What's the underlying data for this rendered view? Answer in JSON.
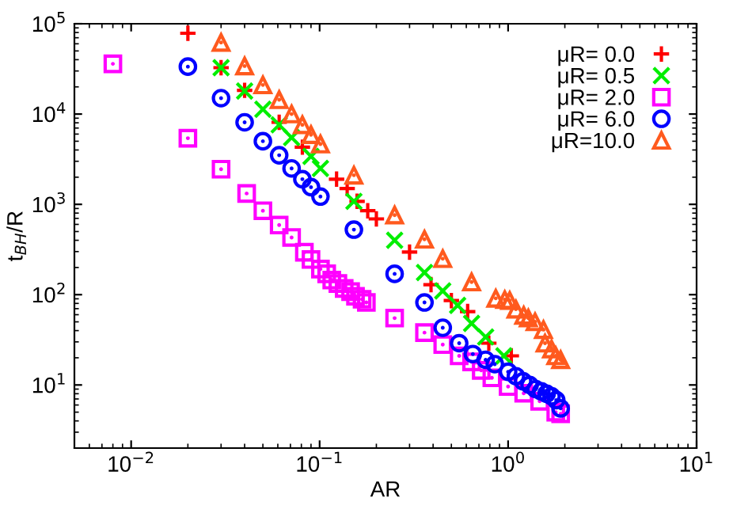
{
  "chart_data": {
    "type": "scatter",
    "xlabel": "AR",
    "ylabel": "t$_{BH}$/R",
    "log": "xy",
    "xlim": [
      0.005,
      10
    ],
    "ylim": [
      2,
      100000
    ],
    "xticks": [
      {
        "value": 0.01,
        "label": "10$^{−2}$"
      },
      {
        "value": 0.1,
        "label": "10$^{−1}$"
      },
      {
        "value": 1,
        "label": "10$^{0}$"
      },
      {
        "value": 10,
        "label": "10$^{1}$"
      }
    ],
    "yticks": [
      {
        "value": 10,
        "label": "10$^{1}$"
      },
      {
        "value": 100,
        "label": "10$^{2}$"
      },
      {
        "value": 1000,
        "label": "10$^{3}$"
      },
      {
        "value": 10000,
        "label": "10$^{4}$"
      },
      {
        "value": 100000,
        "label": "10$^{5}$"
      }
    ],
    "legend": "top right",
    "grid": false,
    "series": [
      {
        "name": "μR= 0.0",
        "color": "#ff0000",
        "marker": "plus",
        "x": [
          0.02,
          0.03,
          0.04,
          0.061,
          0.081,
          0.123,
          0.14,
          0.158,
          0.18,
          0.2,
          0.3,
          0.39,
          0.5,
          0.61,
          0.79,
          1.04
        ],
        "values": [
          78500,
          32600,
          18300,
          8100,
          4300,
          1900,
          1500,
          1080,
          850,
          690,
          296,
          129,
          86,
          65,
          29,
          21
        ]
      },
      {
        "name": "μR= 0.5",
        "color": "#00ee00",
        "marker": "cross",
        "x": [
          0.03,
          0.04,
          0.05,
          0.061,
          0.071,
          0.09,
          0.101,
          0.152,
          0.25,
          0.36,
          0.45,
          0.54,
          0.64,
          0.76,
          0.95
        ],
        "values": [
          32600,
          18000,
          11300,
          7600,
          5500,
          3400,
          2500,
          1080,
          400,
          176,
          110,
          76,
          48,
          34,
          21
        ]
      },
      {
        "name": "μR= 2.0",
        "color": "#ff00ff",
        "marker": "square",
        "x": [
          0.008,
          0.02,
          0.03,
          0.041,
          0.05,
          0.061,
          0.071,
          0.083,
          0.09,
          0.101,
          0.109,
          0.116,
          0.125,
          0.135,
          0.146,
          0.155,
          0.168,
          0.177,
          0.25,
          0.36,
          0.45,
          0.55,
          0.64,
          0.72,
          0.82,
          1.0,
          1.21,
          1.47,
          1.79,
          1.9
        ],
        "values": [
          36000,
          5400,
          2450,
          1320,
          850,
          590,
          430,
          295,
          245,
          192,
          170,
          145,
          133,
          117,
          108,
          96,
          89,
          82,
          55,
          38,
          28,
          21,
          18,
          14.5,
          12,
          9.6,
          8.1,
          6.6,
          5,
          4.8
        ]
      },
      {
        "name": "μR= 6.0",
        "color": "#0000ff",
        "marker": "circle",
        "x": [
          0.02,
          0.03,
          0.04,
          0.05,
          0.061,
          0.071,
          0.081,
          0.09,
          0.101,
          0.152,
          0.25,
          0.36,
          0.45,
          0.55,
          0.65,
          0.76,
          0.85,
          1.0,
          1.1,
          1.2,
          1.3,
          1.4,
          1.5,
          1.6,
          1.7,
          1.8,
          1.9
        ],
        "values": [
          33500,
          15000,
          8100,
          5000,
          3500,
          2500,
          1900,
          1550,
          1220,
          525,
          170,
          82,
          43,
          29,
          22,
          19,
          17,
          14,
          12.5,
          11,
          10,
          9,
          8.5,
          8,
          7.5,
          6.8,
          5.5
        ]
      },
      {
        "name": "μR=10.0",
        "color": "#ff5a1e",
        "marker": "triangle",
        "x": [
          0.03,
          0.04,
          0.05,
          0.061,
          0.071,
          0.081,
          0.09,
          0.101,
          0.152,
          0.25,
          0.36,
          0.45,
          0.64,
          0.86,
          0.96,
          1.02,
          1.1,
          1.21,
          1.28,
          1.39,
          1.54,
          1.57,
          1.7,
          1.79,
          1.9
        ],
        "values": [
          62000,
          34000,
          21000,
          14400,
          10000,
          7600,
          5900,
          4650,
          2100,
          760,
          410,
          250,
          138,
          91,
          88,
          86,
          69,
          59,
          55,
          50,
          41,
          29,
          25,
          21,
          19
        ]
      }
    ]
  }
}
